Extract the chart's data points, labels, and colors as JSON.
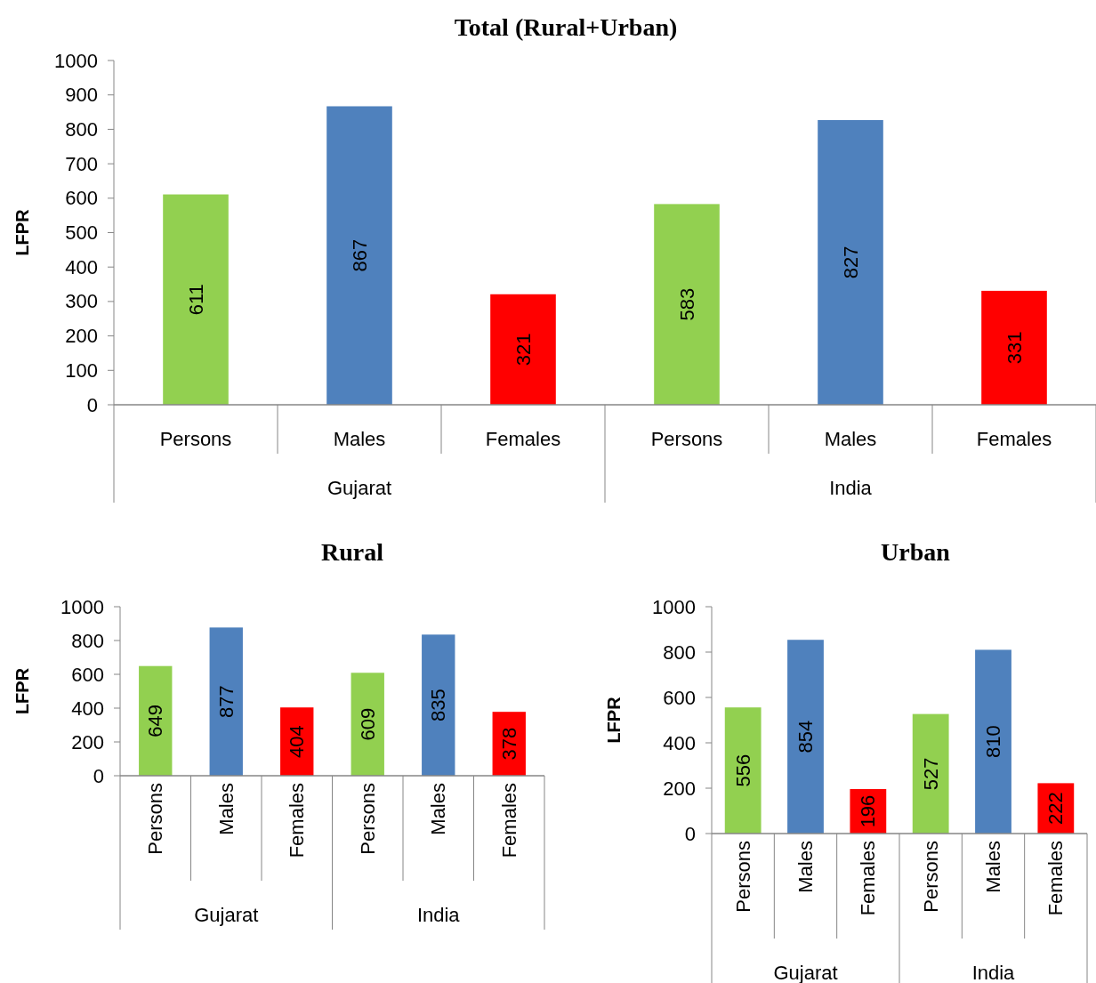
{
  "chart_data": [
    {
      "type": "bar",
      "title": "Total (Rural+Urban)",
      "ylabel": "LFPR",
      "categories": [
        "Persons",
        "Males",
        "Females",
        "Persons",
        "Males",
        "Females"
      ],
      "values": [
        611,
        867,
        321,
        583,
        827,
        331
      ],
      "colors": [
        "#92d050",
        "#4f81bd",
        "#ff0000",
        "#92d050",
        "#4f81bd",
        "#ff0000"
      ],
      "ylim": [
        0,
        1000
      ],
      "yticks": [
        0,
        100,
        200,
        300,
        400,
        500,
        600,
        700,
        800,
        900,
        1000
      ],
      "data_labels": true,
      "annotations": [
        "Gujarat",
        "India"
      ]
    },
    {
      "type": "bar",
      "title": "Rural",
      "ylabel": "LFPR",
      "categories": [
        "Persons",
        "Males",
        "Females",
        "Persons",
        "Males",
        "Females"
      ],
      "values": [
        649,
        877,
        404,
        609,
        835,
        378
      ],
      "colors": [
        "#92d050",
        "#4f81bd",
        "#ff0000",
        "#92d050",
        "#4f81bd",
        "#ff0000"
      ],
      "ylim": [
        0,
        1000
      ],
      "yticks": [
        0,
        200,
        400,
        600,
        800,
        1000
      ],
      "data_labels": true,
      "annotations": [
        "Gujarat",
        "India"
      ]
    },
    {
      "type": "bar",
      "title": "Urban",
      "ylabel": "LFPR",
      "categories": [
        "Persons",
        "Males",
        "Females",
        "Persons",
        "Males",
        "Females"
      ],
      "values": [
        556,
        854,
        196,
        527,
        810,
        222
      ],
      "colors": [
        "#92d050",
        "#4f81bd",
        "#ff0000",
        "#92d050",
        "#4f81bd",
        "#ff0000"
      ],
      "ylim": [
        0,
        1000
      ],
      "yticks": [
        0,
        200,
        400,
        600,
        800,
        1000
      ],
      "data_labels": true,
      "annotations": [
        "Gujarat",
        "India"
      ]
    }
  ]
}
